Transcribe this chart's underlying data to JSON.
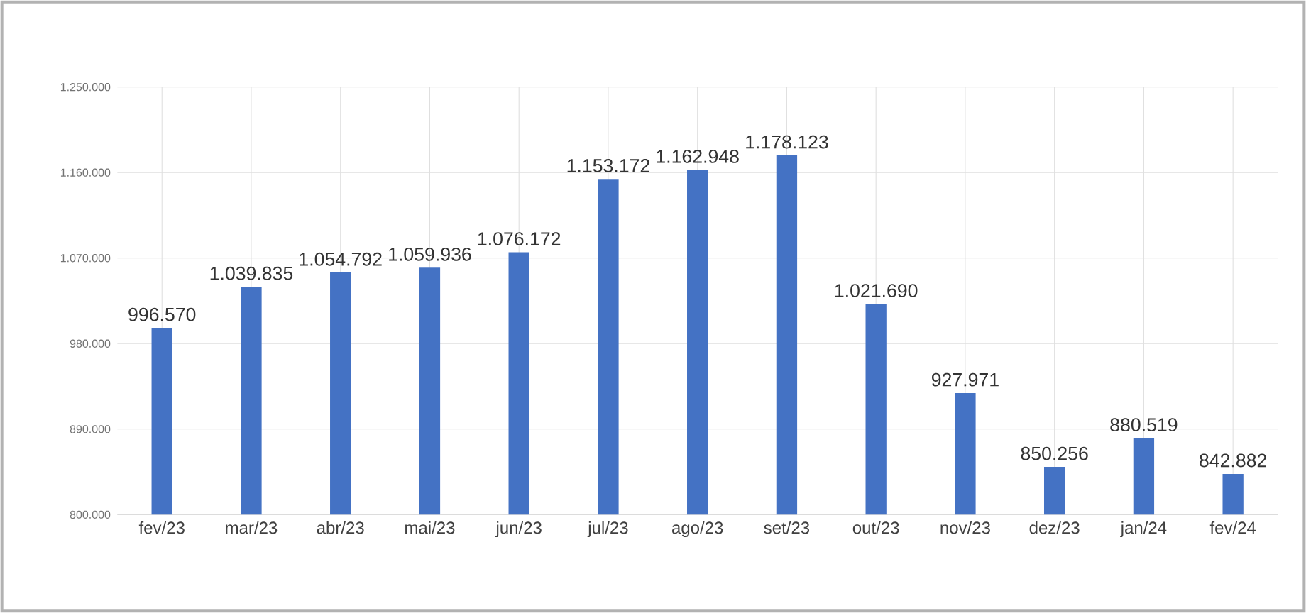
{
  "chart_data": {
    "type": "bar",
    "categories": [
      "fev/23",
      "mar/23",
      "abr/23",
      "mai/23",
      "jun/23",
      "jul/23",
      "ago/23",
      "set/23",
      "out/23",
      "nov/23",
      "dez/23",
      "jan/24",
      "fev/24"
    ],
    "values": [
      996570,
      1039835,
      1054792,
      1059936,
      1076172,
      1153172,
      1162948,
      1178123,
      1021690,
      927971,
      850256,
      880519,
      842882
    ],
    "value_labels": [
      "996.570",
      "1.039.835",
      "1.054.792",
      "1.059.936",
      "1.076.172",
      "1.153.172",
      "1.162.948",
      "1.178.123",
      "1.021.690",
      "927.971",
      "850.256",
      "880.519",
      "842.882"
    ],
    "color": "#4472c4",
    "ylim": [
      800000,
      1250000
    ],
    "yticks": [
      {
        "value": 800000,
        "label": "800.000"
      },
      {
        "value": 890000,
        "label": "890.000"
      },
      {
        "value": 980000,
        "label": "980.000"
      },
      {
        "value": 1070000,
        "label": "1.070.000"
      },
      {
        "value": 1160000,
        "label": "1.160.000"
      },
      {
        "value": 1250000,
        "label": "1.250.000"
      }
    ],
    "grid": true
  }
}
